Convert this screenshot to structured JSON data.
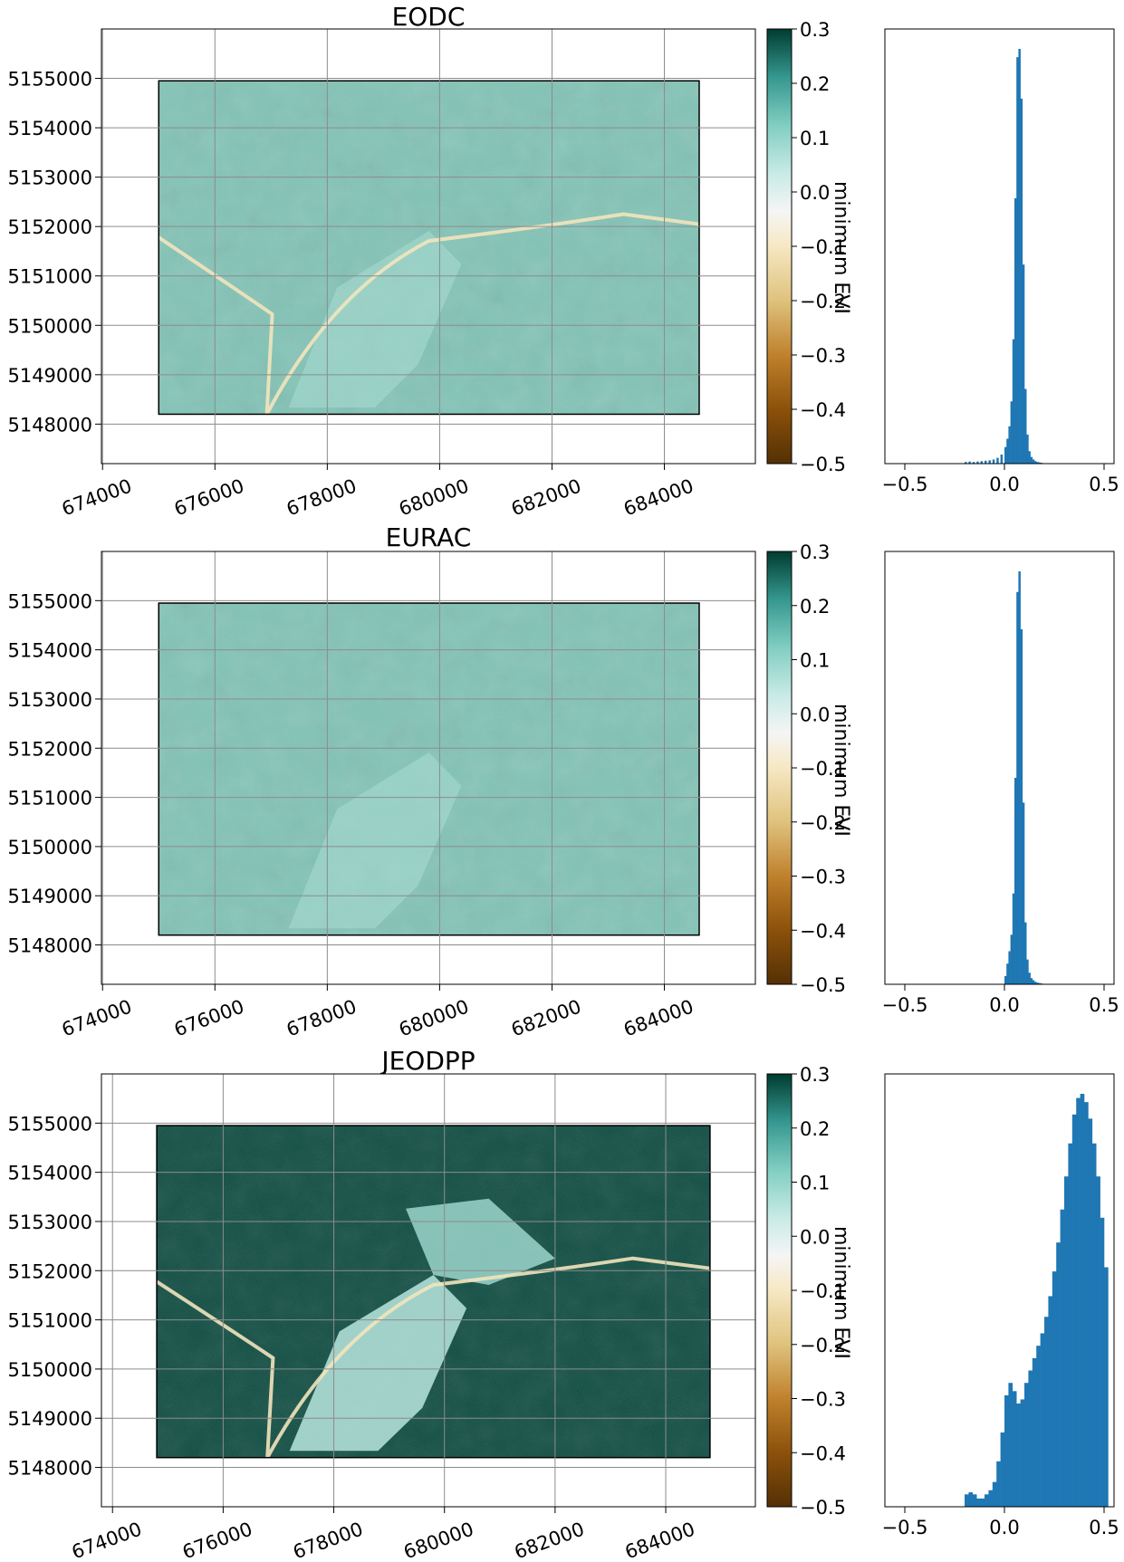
{
  "chart_data": [
    {
      "type": "heatmap",
      "title": "EODC",
      "x_ticks": [
        "674000",
        "676000",
        "678000",
        "680000",
        "682000",
        "684000"
      ],
      "y_ticks": [
        "5148000",
        "5149000",
        "5150000",
        "5151000",
        "5152000",
        "5153000",
        "5154000",
        "5155000"
      ],
      "xlim": [
        673980,
        685620
      ],
      "ylim": [
        5147200,
        5156000
      ],
      "data_extent": {
        "x": [
          675000,
          684620
        ],
        "y": [
          5148200,
          5154950
        ]
      },
      "grid": true,
      "colorbar": {
        "label": "minimum EVI",
        "ticks": [
          "0.3",
          "0.2",
          "0.1",
          "0.0",
          "−0.1",
          "−0.2",
          "−0.3",
          "−0.4",
          "−0.5"
        ],
        "range": [
          -0.5,
          0.3
        ],
        "colormap": "BrBG"
      },
      "histogram": {
        "x_ticks": [
          "−0.5",
          "0.0",
          "0.5"
        ],
        "xlim": [
          -0.6,
          0.55
        ],
        "bins": [
          [
            -0.2,
            0.004
          ],
          [
            -0.18,
            0.005
          ],
          [
            -0.16,
            0.004
          ],
          [
            -0.14,
            0.005
          ],
          [
            -0.12,
            0.006
          ],
          [
            -0.1,
            0.007
          ],
          [
            -0.08,
            0.008
          ],
          [
            -0.06,
            0.01
          ],
          [
            -0.04,
            0.014
          ],
          [
            -0.02,
            0.022
          ],
          [
            0.0,
            0.04
          ],
          [
            0.01,
            0.06
          ],
          [
            0.02,
            0.09
          ],
          [
            0.03,
            0.15
          ],
          [
            0.04,
            0.3
          ],
          [
            0.05,
            0.64
          ],
          [
            0.06,
            0.98
          ],
          [
            0.07,
            1.0
          ],
          [
            0.08,
            0.88
          ],
          [
            0.09,
            0.48
          ],
          [
            0.1,
            0.18
          ],
          [
            0.11,
            0.07
          ],
          [
            0.12,
            0.03
          ],
          [
            0.13,
            0.016
          ],
          [
            0.14,
            0.01
          ],
          [
            0.15,
            0.006
          ],
          [
            0.16,
            0.004
          ],
          [
            0.17,
            0.003
          ],
          [
            0.18,
            0.002
          ]
        ],
        "bar_color": "#1f77b4"
      }
    },
    {
      "type": "heatmap",
      "title": "EURAC",
      "x_ticks": [
        "674000",
        "676000",
        "678000",
        "680000",
        "682000",
        "684000"
      ],
      "y_ticks": [
        "5148000",
        "5149000",
        "5150000",
        "5151000",
        "5152000",
        "5153000",
        "5154000",
        "5155000"
      ],
      "xlim": [
        673980,
        685620
      ],
      "ylim": [
        5147200,
        5156000
      ],
      "data_extent": {
        "x": [
          675000,
          684620
        ],
        "y": [
          5148200,
          5154950
        ]
      },
      "grid": true,
      "colorbar": {
        "label": "minimum EVI",
        "ticks": [
          "0.3",
          "0.2",
          "0.1",
          "0.0",
          "−0.1",
          "−0.2",
          "−0.3",
          "−0.4",
          "−0.5"
        ],
        "range": [
          -0.5,
          0.3
        ],
        "colormap": "BrBG"
      },
      "histogram": {
        "x_ticks": [
          "−0.5",
          "0.0",
          "0.5"
        ],
        "xlim": [
          -0.6,
          0.55
        ],
        "bins": [
          [
            0.0,
            0.02
          ],
          [
            0.01,
            0.05
          ],
          [
            0.02,
            0.08
          ],
          [
            0.03,
            0.12
          ],
          [
            0.04,
            0.22
          ],
          [
            0.05,
            0.5
          ],
          [
            0.06,
            0.95
          ],
          [
            0.07,
            1.0
          ],
          [
            0.08,
            0.86
          ],
          [
            0.09,
            0.44
          ],
          [
            0.1,
            0.15
          ],
          [
            0.11,
            0.06
          ],
          [
            0.12,
            0.028
          ],
          [
            0.13,
            0.015
          ],
          [
            0.14,
            0.01
          ],
          [
            0.15,
            0.006
          ],
          [
            0.16,
            0.004
          ],
          [
            0.17,
            0.003
          ],
          [
            0.18,
            0.002
          ]
        ],
        "bar_color": "#1f77b4"
      }
    },
    {
      "type": "heatmap",
      "title": "JEODPP",
      "x_ticks": [
        "674000",
        "676000",
        "678000",
        "680000",
        "682000",
        "684000"
      ],
      "y_ticks": [
        "5148000",
        "5149000",
        "5150000",
        "5151000",
        "5152000",
        "5153000",
        "5154000",
        "5155000"
      ],
      "xlim": [
        673800,
        685620
      ],
      "ylim": [
        5147200,
        5156000
      ],
      "data_extent": {
        "x": [
          674800,
          684800
        ],
        "y": [
          5148200,
          5154950
        ]
      },
      "grid": true,
      "colorbar": {
        "label": "minimum EVI",
        "ticks": [
          "0.3",
          "0.2",
          "0.1",
          "0.0",
          "−0.1",
          "−0.2",
          "−0.3",
          "−0.4",
          "−0.5"
        ],
        "range": [
          -0.5,
          0.3
        ],
        "colormap": "BrBG"
      },
      "histogram": {
        "x_ticks": [
          "−0.5",
          "0.0",
          "0.5"
        ],
        "xlim": [
          -0.6,
          0.55
        ],
        "bins": [
          [
            -0.2,
            0.03
          ],
          [
            -0.18,
            0.035
          ],
          [
            -0.16,
            0.03
          ],
          [
            -0.14,
            0.02
          ],
          [
            -0.12,
            0.02
          ],
          [
            -0.1,
            0.03
          ],
          [
            -0.08,
            0.04
          ],
          [
            -0.06,
            0.06
          ],
          [
            -0.04,
            0.11
          ],
          [
            -0.02,
            0.18
          ],
          [
            0.0,
            0.27
          ],
          [
            0.02,
            0.3
          ],
          [
            0.04,
            0.28
          ],
          [
            0.06,
            0.25
          ],
          [
            0.08,
            0.26
          ],
          [
            0.1,
            0.3
          ],
          [
            0.12,
            0.33
          ],
          [
            0.14,
            0.36
          ],
          [
            0.16,
            0.39
          ],
          [
            0.18,
            0.42
          ],
          [
            0.2,
            0.46
          ],
          [
            0.22,
            0.51
          ],
          [
            0.24,
            0.57
          ],
          [
            0.26,
            0.64
          ],
          [
            0.28,
            0.72
          ],
          [
            0.3,
            0.8
          ],
          [
            0.32,
            0.88
          ],
          [
            0.34,
            0.95
          ],
          [
            0.36,
            0.99
          ],
          [
            0.38,
            1.0
          ],
          [
            0.4,
            0.98
          ],
          [
            0.42,
            0.94
          ],
          [
            0.44,
            0.88
          ],
          [
            0.46,
            0.8
          ],
          [
            0.48,
            0.7
          ],
          [
            0.5,
            0.58
          ]
        ],
        "bar_color": "#1f77b4"
      }
    }
  ]
}
